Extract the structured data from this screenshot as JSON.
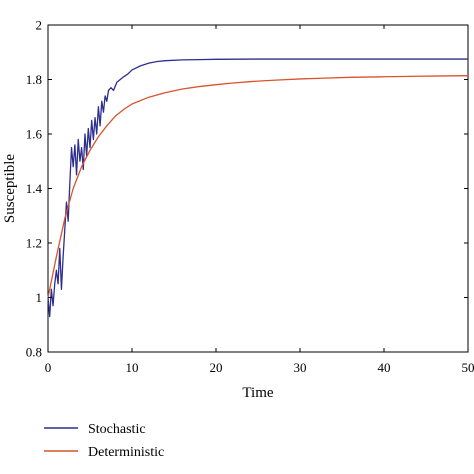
{
  "chart_data": {
    "type": "line",
    "title": "",
    "xlabel": "Time",
    "ylabel": "Susceptible",
    "xlim": [
      0,
      50
    ],
    "ylim": [
      0.8,
      2
    ],
    "xticks": [
      0,
      10,
      20,
      30,
      40,
      50
    ],
    "xtick_labels": [
      "0",
      "10",
      "20",
      "30",
      "40",
      "50"
    ],
    "yticks": [
      0.8,
      1,
      1.2,
      1.4,
      1.6,
      1.8,
      2
    ],
    "ytick_labels": [
      "0.8",
      "1",
      "1.2",
      "1.4",
      "1.6",
      "1.8",
      "2"
    ],
    "grid": false,
    "legend_position": "bottom-left, below plot",
    "series": [
      {
        "name": "Stochastic",
        "color": "#2e2e8f",
        "x": [
          0,
          0.2,
          0.4,
          0.6,
          0.8,
          1.0,
          1.2,
          1.4,
          1.6,
          1.8,
          2.0,
          2.2,
          2.4,
          2.6,
          2.8,
          3.0,
          3.2,
          3.4,
          3.6,
          3.8,
          4.0,
          4.2,
          4.4,
          4.6,
          4.8,
          5.0,
          5.2,
          5.4,
          5.6,
          5.8,
          6.0,
          6.2,
          6.4,
          6.6,
          6.8,
          7.0,
          7.2,
          7.5,
          7.8,
          8.2,
          8.6,
          9.0,
          9.5,
          10,
          11,
          12,
          13,
          14,
          16,
          18,
          20,
          25,
          30,
          35,
          40,
          45,
          50
        ],
        "y": [
          1.0,
          0.93,
          1.03,
          0.97,
          1.05,
          1.1,
          1.05,
          1.18,
          1.03,
          1.15,
          1.25,
          1.35,
          1.28,
          1.42,
          1.55,
          1.48,
          1.56,
          1.45,
          1.58,
          1.5,
          1.55,
          1.47,
          1.6,
          1.52,
          1.62,
          1.55,
          1.65,
          1.58,
          1.66,
          1.6,
          1.7,
          1.63,
          1.72,
          1.68,
          1.74,
          1.72,
          1.76,
          1.77,
          1.76,
          1.79,
          1.8,
          1.81,
          1.82,
          1.835,
          1.85,
          1.86,
          1.866,
          1.869,
          1.872,
          1.873,
          1.874,
          1.875,
          1.875,
          1.875,
          1.875,
          1.875,
          1.875
        ]
      },
      {
        "name": "Deterministic",
        "color": "#d9532b",
        "x": [
          0,
          1,
          2,
          3,
          4,
          5,
          6,
          7,
          8,
          9,
          10,
          12,
          14,
          16,
          18,
          20,
          22,
          24,
          26,
          28,
          30,
          33,
          36,
          40,
          44,
          47,
          50
        ],
        "y": [
          1.0,
          1.15,
          1.29,
          1.4,
          1.48,
          1.54,
          1.59,
          1.63,
          1.665,
          1.69,
          1.71,
          1.735,
          1.752,
          1.765,
          1.774,
          1.781,
          1.787,
          1.792,
          1.796,
          1.799,
          1.802,
          1.805,
          1.808,
          1.81,
          1.812,
          1.813,
          1.814
        ]
      }
    ]
  }
}
